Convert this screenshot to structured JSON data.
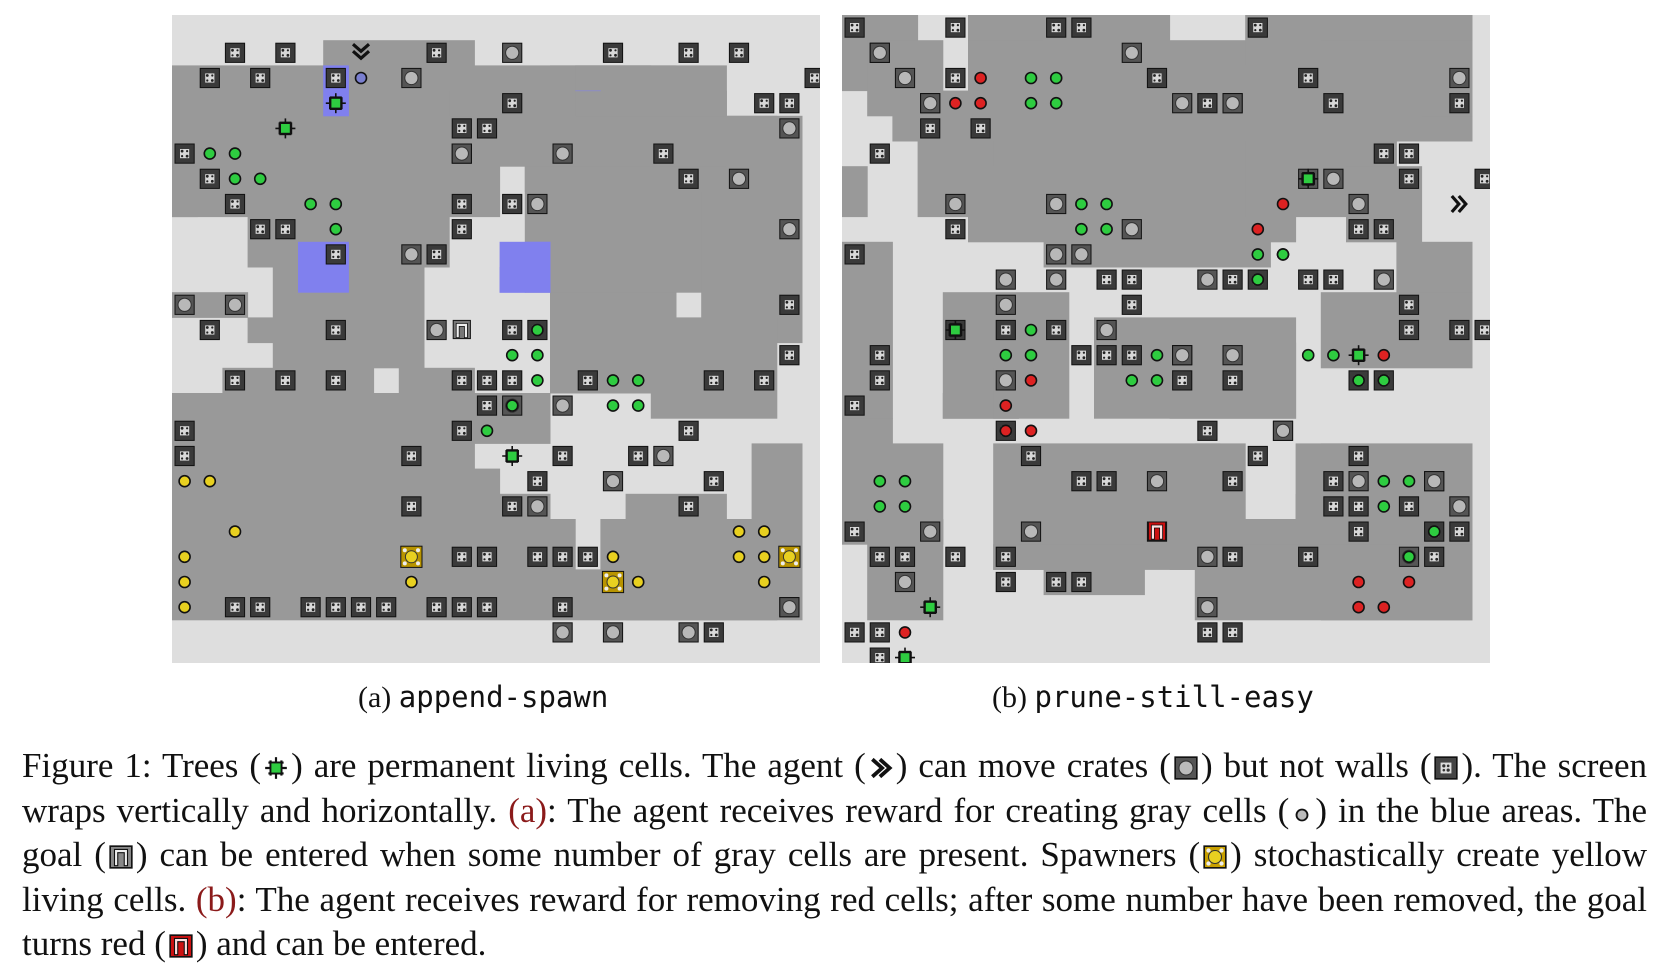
{
  "figure": {
    "panel_a": {
      "label": "(a)",
      "env_name": "append-spawn"
    },
    "panel_b": {
      "label": "(b)",
      "env_name": "prune-still-easy"
    },
    "caption": {
      "prefix": "Figure 1:",
      "s1": "Trees (",
      "s2": ") are permanent living cells. The agent (",
      "s3": ") can move crates (",
      "s4": ") but not walls (",
      "s5": "). The screen wraps vertically and horizontally.",
      "ref_a": "(a)",
      "s6": ": The agent receives reward for creating gray cells (",
      "s7": ") in the blue areas. The goal (",
      "s8": ") can be entered when some number of gray cells are present. Spawners (",
      "s9": ") stochastically create yellow living cells.",
      "ref_b": "(b)",
      "s10": ": The agent receives reward for removing red cells; after some number have been removed, the goal turns red (",
      "s11": ") and can be entered."
    },
    "colors": {
      "floor": "#dedede",
      "region": "#999999",
      "blue_area": "#8080ee",
      "green_cell": "#2ecc40",
      "red_cell": "#dd2222",
      "yellow_cell": "#e8d020",
      "red_goal": "#cc1111"
    },
    "icons": {
      "tree": "tree-icon",
      "agent": "agent-chevron-icon",
      "crate": "crate-icon",
      "wall": "wall-icon",
      "gray_cell": "gray-cell-icon",
      "goal": "goal-icon",
      "spawner": "spawner-icon",
      "red_goal": "red-goal-icon"
    }
  }
}
